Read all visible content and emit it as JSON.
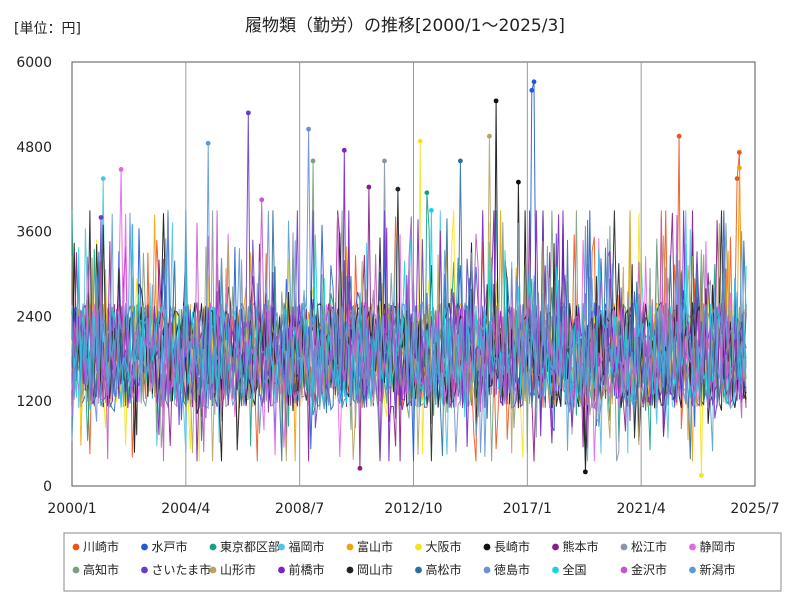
{
  "chart_data": {
    "type": "line",
    "title": "履物類（勤労）の推移[2000/1～2025/3]",
    "unit_label": "[単位：円]",
    "xlabel": "",
    "ylabel": "",
    "x_start": "2000/1",
    "x_end": "2025/3",
    "xlim": [
      "2000/1",
      "2025/7"
    ],
    "x_ticks": [
      "2000/1",
      "2004/4",
      "2008/7",
      "2012/10",
      "2017/1",
      "2021/4",
      "2025/7"
    ],
    "ylim": [
      0,
      6000
    ],
    "y_ticks": [
      "0",
      "1200",
      "2400",
      "3600",
      "4800",
      "6000"
    ],
    "grid": "vertical",
    "legend_position": "bottom",
    "series": [
      {
        "name": "川崎市",
        "color": "#f0541e",
        "values": [
          {
            "x": "2022/9",
            "y": 4950
          },
          {
            "x": "2024/12",
            "y": 4720
          },
          {
            "x": "2024/11",
            "y": 4350
          }
        ]
      },
      {
        "name": "水戸市",
        "color": "#1f5bd6",
        "values": [
          {
            "x": "2017/4",
            "y": 5720
          },
          {
            "x": "2017/3",
            "y": 5600
          }
        ]
      },
      {
        "name": "東京都区部",
        "color": "#16a085",
        "values": [
          {
            "x": "2013/4",
            "y": 4150
          }
        ]
      },
      {
        "name": "福岡市",
        "color": "#4fc3e8",
        "values": [
          {
            "x": "2001/3",
            "y": 4350
          }
        ]
      },
      {
        "name": "富山市",
        "color": "#f0a30a",
        "values": [
          {
            "x": "2024/12",
            "y": 4500
          }
        ]
      },
      {
        "name": "大阪市",
        "color": "#f5e31a",
        "values": [
          {
            "x": "2013/1",
            "y": 4880
          },
          {
            "x": "2023/7",
            "y": 150
          }
        ]
      },
      {
        "name": "長崎市",
        "color": "#111111",
        "values": [
          {
            "x": "2015/11",
            "y": 5450
          },
          {
            "x": "2016/9",
            "y": 4300
          },
          {
            "x": "2019/3",
            "y": 200
          }
        ]
      },
      {
        "name": "熊本市",
        "color": "#8b1a8b",
        "values": [
          {
            "x": "2011/2",
            "y": 4230
          },
          {
            "x": "2010/10",
            "y": 250
          }
        ]
      },
      {
        "name": "松江市",
        "color": "#8a95a5",
        "values": [
          {
            "x": "2011/9",
            "y": 4600
          }
        ]
      },
      {
        "name": "静岡市",
        "color": "#e266e8",
        "values": [
          {
            "x": "2001/11",
            "y": 4480
          }
        ]
      },
      {
        "name": "高知市",
        "color": "#7e9e7e",
        "values": [
          {
            "x": "2009/1",
            "y": 4600
          }
        ]
      },
      {
        "name": "さいたま市",
        "color": "#6a3cc8",
        "values": [
          {
            "x": "2006/8",
            "y": 5280
          },
          {
            "x": "2001/2",
            "y": 3800
          }
        ]
      },
      {
        "name": "山形市",
        "color": "#b5a264",
        "values": [
          {
            "x": "2015/8",
            "y": 4950
          }
        ]
      },
      {
        "name": "前橋市",
        "color": "#7a22c4",
        "values": [
          {
            "x": "2010/3",
            "y": 4750
          }
        ]
      },
      {
        "name": "岡山市",
        "color": "#222222",
        "values": [
          {
            "x": "2012/3",
            "y": 4200
          }
        ]
      },
      {
        "name": "高松市",
        "color": "#2e6f9e",
        "values": [
          {
            "x": "2014/7",
            "y": 4600
          }
        ]
      },
      {
        "name": "徳島市",
        "color": "#6c8fd6",
        "values": [
          {
            "x": "2008/11",
            "y": 5050
          }
        ]
      },
      {
        "name": "全国",
        "color": "#19d3e0",
        "values": [
          {
            "x": "2013/6",
            "y": 3900
          }
        ]
      },
      {
        "name": "金沢市",
        "color": "#c159c8",
        "values": [
          {
            "x": "2007/2",
            "y": 4050
          }
        ]
      },
      {
        "name": "新潟市",
        "color": "#5b9bd5",
        "values": [
          {
            "x": "2005/2",
            "y": 4850
          }
        ]
      }
    ]
  }
}
